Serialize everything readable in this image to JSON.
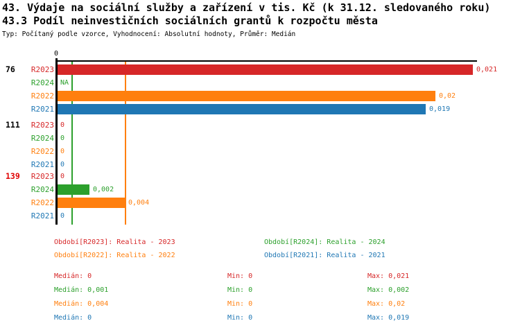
{
  "header": {
    "title1": "43. Výdaje na sociální služby a zařízení v tis. Kč (k 31.12. sledovaného roku)",
    "title2": "43.3 Podíl neinvestičních sociálních grantů k rozpočtu města",
    "subtitle": "Typ: Počítaný podle vzorce, Vyhodnocení: Absolutní hodnoty, Průměr: Medián"
  },
  "colors": {
    "red": "#d62728",
    "green": "#2ca02c",
    "orange": "#ff7f0e",
    "blue": "#1f77b4",
    "black": "#000000",
    "alert_red": "#e00000"
  },
  "chart_data": {
    "type": "bar",
    "orientation": "horizontal",
    "axis": {
      "tick_label": "0",
      "min": 0,
      "max": 0.0212,
      "grid": false
    },
    "series_legend_names": [
      "R2023",
      "R2024",
      "R2022",
      "R2021"
    ],
    "groups": [
      {
        "label": "76",
        "label_color": "black",
        "rows": [
          {
            "series": "R2023",
            "color": "red",
            "value": 0.021,
            "value_label": "0,021"
          },
          {
            "series": "R2024",
            "color": "green",
            "value": null,
            "value_label": "NA"
          },
          {
            "series": "R2022",
            "color": "orange",
            "value": 0.0191,
            "value_label": "0,02"
          },
          {
            "series": "R2021",
            "color": "blue",
            "value": 0.0186,
            "value_label": "0,019"
          }
        ]
      },
      {
        "label": "111",
        "label_color": "black",
        "rows": [
          {
            "series": "R2023",
            "color": "red",
            "value": 0,
            "value_label": "0"
          },
          {
            "series": "R2024",
            "color": "green",
            "value": 0,
            "value_label": "0"
          },
          {
            "series": "R2022",
            "color": "orange",
            "value": 0,
            "value_label": "0"
          },
          {
            "series": "R2021",
            "color": "blue",
            "value": 0,
            "value_label": "0"
          }
        ]
      },
      {
        "label": "139",
        "label_color": "alert_red",
        "rows": [
          {
            "series": "R2023",
            "color": "red",
            "value": 0,
            "value_label": "0"
          },
          {
            "series": "R2024",
            "color": "green",
            "value": 0.0016,
            "value_label": "0,002"
          },
          {
            "series": "R2022",
            "color": "orange",
            "value": 0.0034,
            "value_label": "0,004"
          },
          {
            "series": "R2021",
            "color": "blue",
            "value": 0,
            "value_label": "0"
          }
        ]
      }
    ],
    "reference_lines": [
      {
        "color": "green",
        "value": 0.00075,
        "meaning": "median of R2024"
      },
      {
        "color": "orange",
        "value": 0.00345,
        "meaning": "median of R2022"
      }
    ]
  },
  "legend": {
    "items": [
      {
        "text": "Období[R2023]: Realita - 2023",
        "color": "red"
      },
      {
        "text": "Období[R2024]: Realita - 2024",
        "color": "green"
      },
      {
        "text": "Období[R2022]: Realita - 2022",
        "color": "orange"
      },
      {
        "text": "Období[R2021]: Realita - 2021",
        "color": "blue"
      }
    ]
  },
  "stats": {
    "rows": [
      {
        "color": "red",
        "median": "Medián: 0",
        "min": "Min: 0",
        "max": "Max: 0,021"
      },
      {
        "color": "green",
        "median": "Medián: 0,001",
        "min": "Min: 0",
        "max": "Max: 0,002"
      },
      {
        "color": "orange",
        "median": "Medián: 0,004",
        "min": "Min: 0",
        "max": "Max: 0,02"
      },
      {
        "color": "blue",
        "median": "Medián: 0",
        "min": "Min: 0",
        "max": "Max: 0,019"
      }
    ]
  }
}
